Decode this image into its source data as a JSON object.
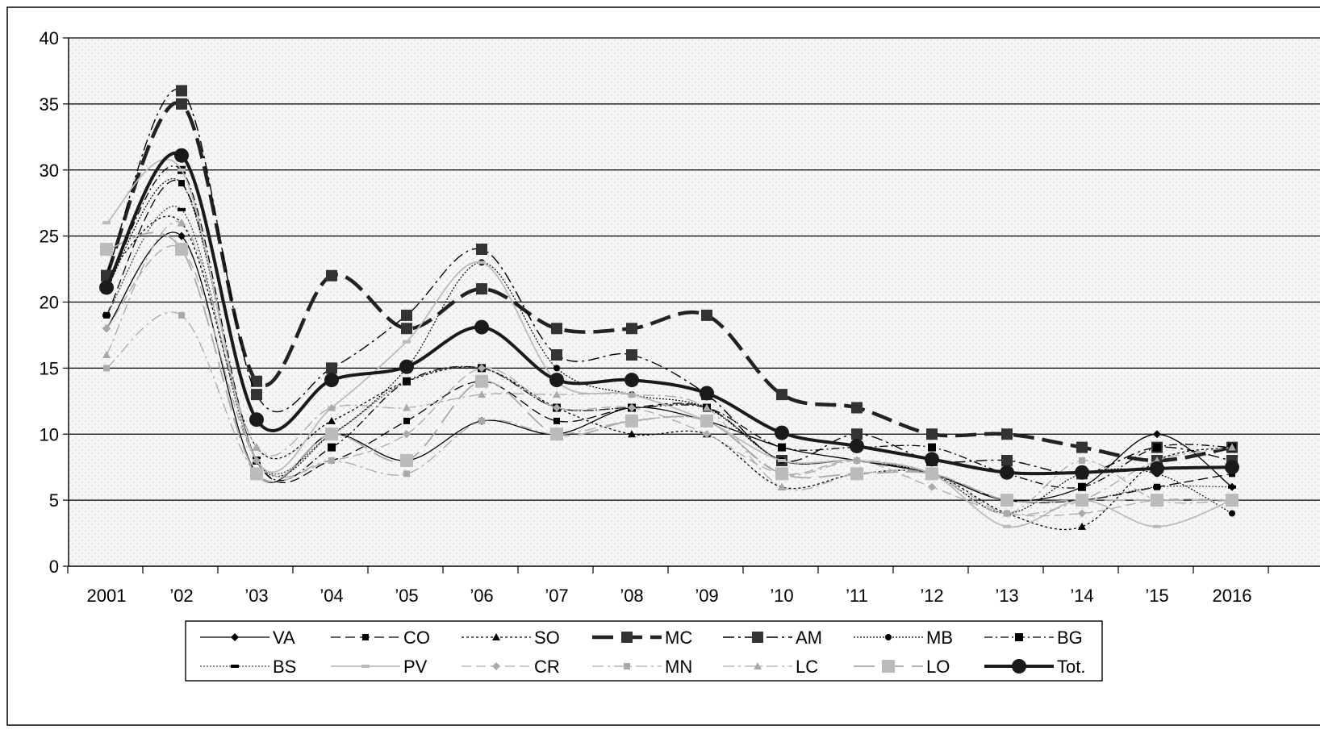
{
  "chart_data": {
    "type": "line",
    "title": "",
    "xlabel": "",
    "ylabel": "",
    "ylim": [
      0,
      40
    ],
    "yticks": [
      "0",
      "5",
      "10",
      "15",
      "20",
      "25",
      "30",
      "35",
      "40"
    ],
    "categories": [
      "2001",
      "’02",
      "’03",
      "’04",
      "’05",
      "’06",
      "’07",
      "’08",
      "’09",
      "’10",
      "’11",
      "’12",
      "’13",
      "’14",
      "’15",
      "2016"
    ],
    "grid": true,
    "legend_position": "bottom",
    "series": [
      {
        "name": "VA",
        "values": [
          18,
          25,
          7,
          10,
          8,
          11,
          10,
          12,
          11,
          9,
          8,
          7,
          5,
          6,
          10,
          6
        ],
        "style": "solid",
        "width": 1.3,
        "color": "#000000",
        "marker": "diamond",
        "msize": 5,
        "mcolor": "#000000"
      },
      {
        "name": "CO",
        "values": [
          19,
          29,
          8,
          8,
          11,
          14,
          11,
          12,
          12,
          8,
          8,
          7,
          5,
          5,
          6,
          7
        ],
        "style": "dash",
        "width": 1.3,
        "color": "#000000",
        "marker": "square",
        "msize": 4,
        "mcolor": "#000000"
      },
      {
        "name": "SO",
        "values": [
          22,
          26,
          9,
          11,
          14,
          15,
          12,
          10,
          10,
          6,
          7,
          7,
          4,
          3,
          8,
          9
        ],
        "style": "dot",
        "width": 1.3,
        "color": "#000000",
        "marker": "triangle",
        "msize": 5,
        "mcolor": "#000000"
      },
      {
        "name": "MC",
        "values": [
          22,
          35,
          14,
          22,
          18,
          21,
          18,
          18,
          19,
          13,
          12,
          10,
          10,
          9,
          8,
          9
        ],
        "style": "longdash",
        "width": 4.5,
        "color": "#222222",
        "marker": "square",
        "msize": 7,
        "mcolor": "#333333"
      },
      {
        "name": "AM",
        "values": [
          22,
          36,
          13,
          15,
          19,
          24,
          16,
          16,
          13,
          8,
          10,
          8,
          8,
          7,
          9,
          8
        ],
        "style": "dashdot",
        "width": 1.4,
        "color": "#000000",
        "marker": "square",
        "msize": 7,
        "mcolor": "#333333"
      },
      {
        "name": "MB",
        "values": [
          21,
          29,
          8,
          10,
          15,
          23,
          15,
          13,
          12,
          8,
          8,
          7,
          4,
          7,
          7,
          4
        ],
        "style": "finedot",
        "width": 1.2,
        "color": "#000000",
        "marker": "circle",
        "msize": 4,
        "mcolor": "#000000"
      },
      {
        "name": "BG",
        "values": [
          21,
          30,
          8,
          9,
          14,
          15,
          12,
          12,
          12,
          9,
          9,
          9,
          7,
          6,
          9,
          9
        ],
        "style": "dashdot2",
        "width": 1.3,
        "color": "#000000",
        "marker": "square",
        "msize": 5,
        "mcolor": "#000000"
      },
      {
        "name": "BS",
        "values": [
          19,
          27,
          8,
          10,
          14,
          15,
          12,
          12,
          12,
          8,
          8,
          7,
          5,
          5,
          6,
          6
        ],
        "style": "finedot",
        "width": 1.3,
        "color": "#444444",
        "marker": "dash",
        "msize": 5,
        "mcolor": "#000000"
      },
      {
        "name": "PV",
        "values": [
          26,
          30,
          8,
          12,
          17,
          23,
          14,
          13,
          11,
          8,
          8,
          7,
          3,
          5,
          3,
          5
        ],
        "style": "solid",
        "width": 1.8,
        "color": "#bbbbbb",
        "marker": "dash",
        "msize": 5,
        "mcolor": "#bbbbbb"
      },
      {
        "name": "CR",
        "values": [
          18,
          24,
          8,
          8,
          10,
          15,
          12,
          12,
          10,
          7,
          8,
          6,
          4,
          4,
          5,
          5
        ],
        "style": "dash",
        "width": 1.3,
        "color": "#aaaaaa",
        "marker": "diamond",
        "msize": 5,
        "mcolor": "#aaaaaa"
      },
      {
        "name": "MN",
        "values": [
          15,
          19,
          7,
          8,
          7,
          11,
          10,
          11,
          11,
          7,
          8,
          7,
          4,
          8,
          5,
          5
        ],
        "style": "dashdot",
        "width": 1.3,
        "color": "#aaaaaa",
        "marker": "square",
        "msize": 4,
        "mcolor": "#aaaaaa"
      },
      {
        "name": "LC",
        "values": [
          16,
          26,
          9,
          12,
          12,
          13,
          13,
          13,
          12,
          6,
          7,
          7,
          4,
          5,
          8,
          9
        ],
        "style": "dashdot",
        "width": 1.3,
        "color": "#aaaaaa",
        "marker": "triangle",
        "msize": 5,
        "mcolor": "#aaaaaa"
      },
      {
        "name": "LO",
        "values": [
          24,
          24,
          7,
          10,
          8,
          14,
          10,
          11,
          11,
          7,
          7,
          7,
          5,
          5,
          5,
          5
        ],
        "style": "longdash",
        "width": 1.8,
        "color": "#aaaaaa",
        "marker": "square",
        "msize": 8,
        "mcolor": "#bbbbbb"
      },
      {
        "name": "Tot.",
        "values": [
          21.1,
          31.1,
          11.1,
          14.1,
          15.1,
          18.1,
          14.1,
          14.1,
          13.1,
          10.1,
          9.1,
          8.1,
          7.1,
          7.1,
          7.4,
          7.5
        ],
        "style": "solid",
        "width": 4,
        "color": "#1a1a1a",
        "marker": "circle",
        "msize": 9,
        "mcolor": "#1a1a1a"
      }
    ]
  }
}
